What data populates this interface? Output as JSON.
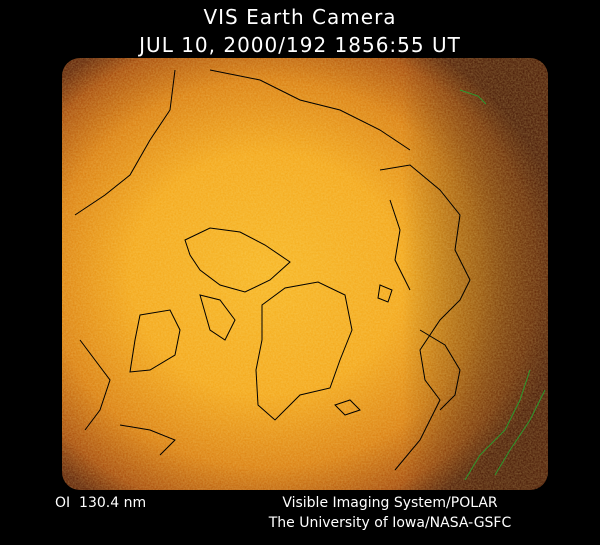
{
  "header": {
    "title": "VIS Earth Camera",
    "timestamp": "JUL 10, 2000/192 1856:55 UT"
  },
  "footer": {
    "wavelength": "OI  130.4 nm",
    "instrument": "Visible Imaging System/POLAR",
    "institution": "The University of Iowa/NASA-GSFC"
  }
}
